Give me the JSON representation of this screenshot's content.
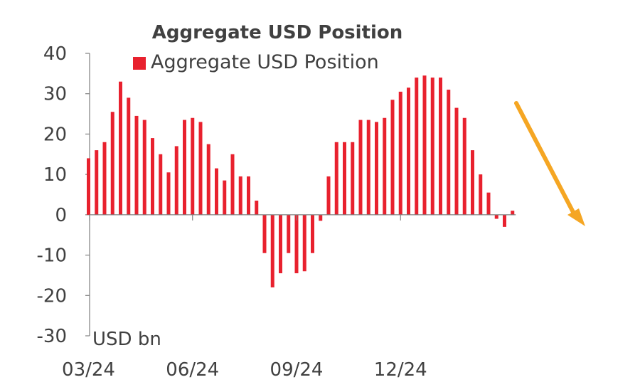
{
  "chart_data": {
    "type": "bar",
    "title": "Aggregate USD Position",
    "unit_label": "USD bn",
    "legend": {
      "position": "top",
      "entries": [
        {
          "name": "Aggregate USD Position",
          "color": "#e8212e"
        }
      ]
    },
    "series": [
      {
        "name": "Aggregate USD Position",
        "color": "#e8212e",
        "values": [
          14,
          16,
          18,
          25.5,
          33,
          29,
          24.5,
          23.5,
          19,
          15,
          10.5,
          17,
          23.5,
          24,
          23,
          17.5,
          11.5,
          8.5,
          15,
          9.5,
          9.5,
          3.5,
          -9.5,
          -18,
          -14.5,
          -9.5,
          -14.5,
          -14,
          -9.5,
          -1.5,
          9.5,
          18,
          18,
          18,
          23.5,
          23.5,
          23,
          24,
          28.5,
          30.5,
          31.5,
          34,
          34.5,
          34,
          34,
          31,
          26.5,
          24,
          16,
          10,
          5.5,
          -1,
          -3,
          1
        ]
      }
    ],
    "x_tick_labels": [
      {
        "label": "03/24",
        "bar_index": 0
      },
      {
        "label": "06/24",
        "bar_index": 13
      },
      {
        "label": "09/24",
        "bar_index": 26
      },
      {
        "label": "12/24",
        "bar_index": 39
      }
    ],
    "ylim": [
      -30,
      40
    ],
    "yticks": [
      -30,
      -20,
      -10,
      0,
      10,
      20,
      30,
      40
    ],
    "grid": false,
    "annotations": [
      {
        "type": "arrow",
        "color": "#f5a623",
        "direction": "down-right"
      }
    ]
  }
}
